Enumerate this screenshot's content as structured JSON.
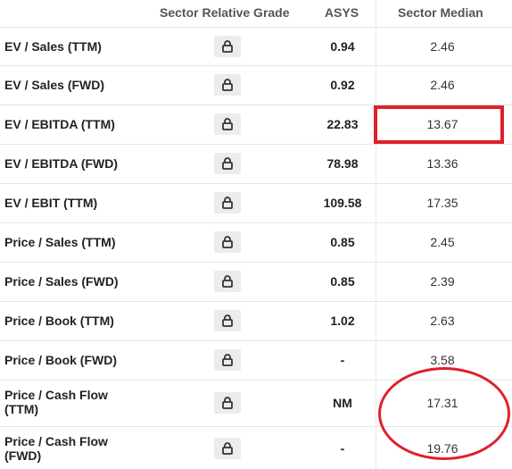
{
  "header": {
    "grade_label": "Sector Relative Grade",
    "ticker_label": "ASYS",
    "median_label": "Sector Median"
  },
  "rows": [
    {
      "metric": "EV / Sales (TTM)",
      "value": "0.94",
      "median": "2.46"
    },
    {
      "metric": "EV / Sales (FWD)",
      "value": "0.92",
      "median": "2.46"
    },
    {
      "metric": "EV / EBITDA (TTM)",
      "value": "22.83",
      "median": "13.67"
    },
    {
      "metric": "EV / EBITDA (FWD)",
      "value": "78.98",
      "median": "13.36"
    },
    {
      "metric": "EV / EBIT (TTM)",
      "value": "109.58",
      "median": "17.35"
    },
    {
      "metric": "Price / Sales (TTM)",
      "value": "0.85",
      "median": "2.45"
    },
    {
      "metric": "Price / Sales (FWD)",
      "value": "0.85",
      "median": "2.39"
    },
    {
      "metric": "Price / Book (TTM)",
      "value": "1.02",
      "median": "2.63"
    },
    {
      "metric": "Price / Book (FWD)",
      "value": "-",
      "median": "3.58"
    },
    {
      "metric_line1": "Price / Cash Flow",
      "metric_line2": "(TTM)",
      "value": "NM",
      "median": "17.31"
    },
    {
      "metric_line1": "Price / Cash Flow",
      "metric_line2": "(FWD)",
      "value": "-",
      "median": "19.76"
    }
  ],
  "icons": {
    "grade": "lock-icon"
  },
  "colors": {
    "annotation": "#e0202c",
    "lock_background": "#ececec",
    "divider": "#e6e6e6"
  }
}
